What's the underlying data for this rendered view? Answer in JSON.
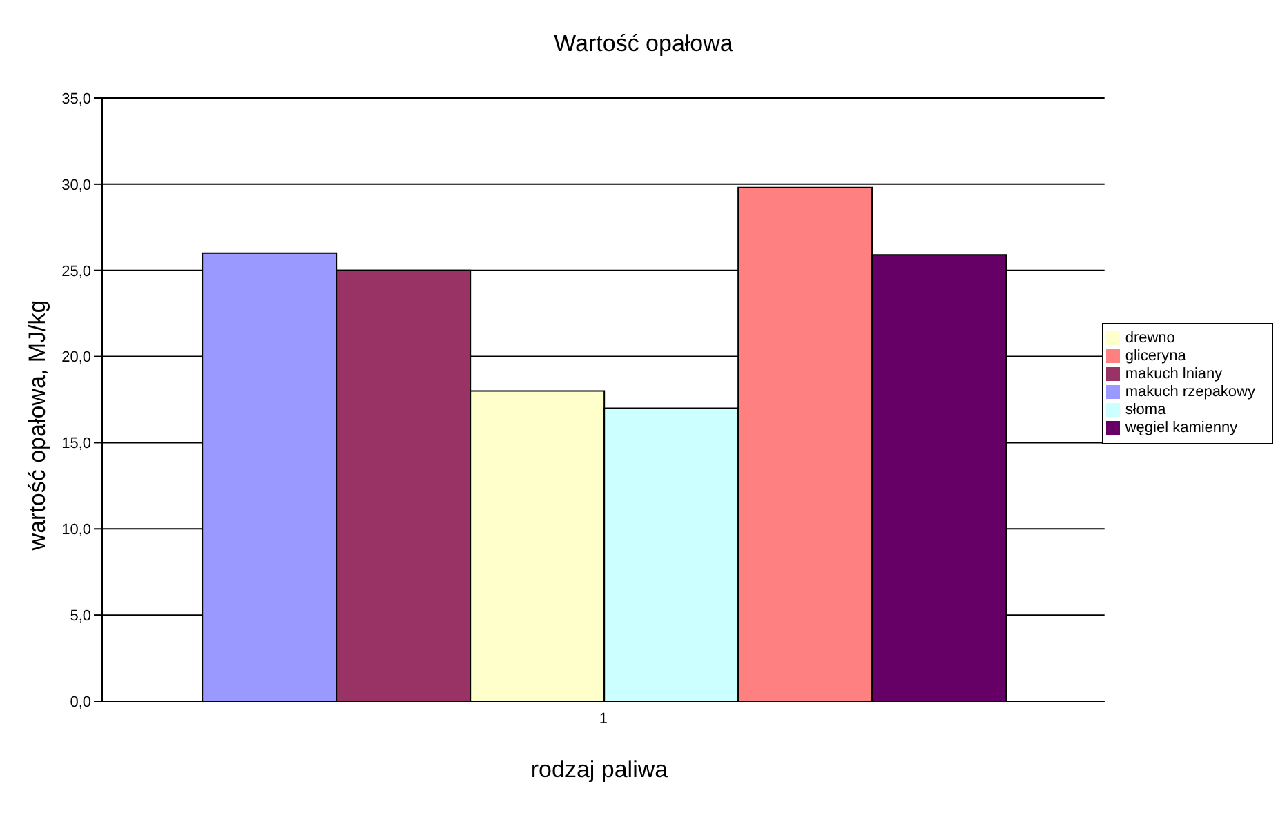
{
  "chart_data": {
    "type": "bar",
    "title": "Wartość opałowa",
    "xlabel": "rodzaj paliwa",
    "ylabel": "wartość opałowa, MJ/kg",
    "categories": [
      "1"
    ],
    "series": [
      {
        "name": "makuch rzepakowy",
        "color": "#9999ff",
        "values": [
          26.0
        ]
      },
      {
        "name": "makuch lniany",
        "color": "#993366",
        "values": [
          25.0
        ]
      },
      {
        "name": "drewno",
        "color": "#ffffcc",
        "values": [
          18.0
        ]
      },
      {
        "name": "słoma",
        "color": "#ccffff",
        "values": [
          17.0
        ]
      },
      {
        "name": "gliceryna",
        "color": "#ff8080",
        "values": [
          29.8
        ]
      },
      {
        "name": "węgiel kamienny",
        "color": "#660066",
        "values": [
          25.9
        ]
      }
    ],
    "ylim": [
      0,
      35
    ],
    "yticks": [
      {
        "value": 0,
        "label": "0,0"
      },
      {
        "value": 5,
        "label": "5,0"
      },
      {
        "value": 10,
        "label": "10,0"
      },
      {
        "value": 15,
        "label": "15,0"
      },
      {
        "value": 20,
        "label": "20,0"
      },
      {
        "value": 25,
        "label": "25,0"
      },
      {
        "value": 30,
        "label": "30,0"
      },
      {
        "value": 35,
        "label": "35,0"
      }
    ],
    "grid": "y",
    "legend": "right"
  }
}
